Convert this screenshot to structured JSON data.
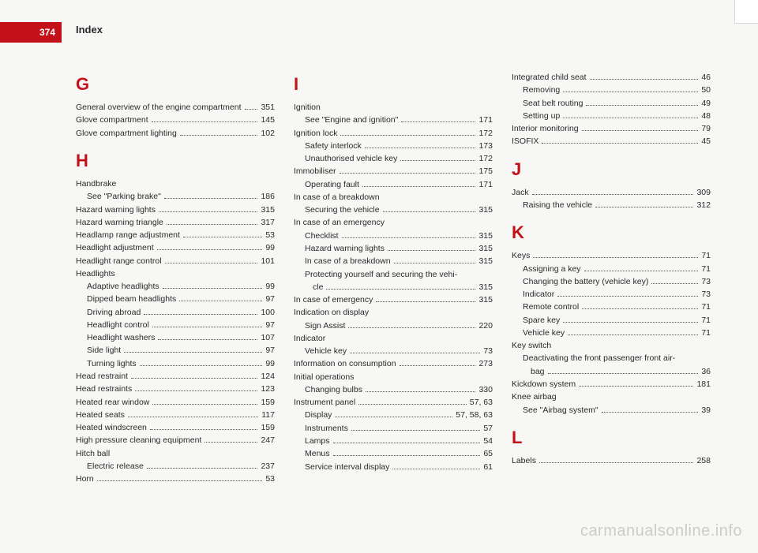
{
  "colors": {
    "page_bg": "#f7f7f5",
    "red_tab": "#c41018",
    "heading_red": "#c41018",
    "text": "#2a2a2a",
    "header_text": "#2a2a2a",
    "watermark": "rgba(0,0,0,0.18)"
  },
  "page_number": "374",
  "header_title": "Index",
  "watermark": "carmanualsonline.info",
  "columns": [
    {
      "sections": [
        {
          "letter": "G",
          "entries": [
            {
              "label": "General overview of the engine compartment",
              "page": "351"
            },
            {
              "label": "Glove compartment",
              "page": "145"
            },
            {
              "label": "Glove compartment lighting",
              "page": "102"
            }
          ]
        },
        {
          "letter": "H",
          "entries": [
            {
              "label": "Handbrake",
              "page": ""
            },
            {
              "label": "See \"Parking brake\"",
              "page": "186",
              "sub": true
            },
            {
              "label": "Hazard warning lights",
              "page": "315"
            },
            {
              "label": "Hazard warning triangle",
              "page": "317"
            },
            {
              "label": "Headlamp range adjustment",
              "page": "53"
            },
            {
              "label": "Headlight adjustment",
              "page": "99"
            },
            {
              "label": "Headlight range control",
              "page": "101"
            },
            {
              "label": "Headlights",
              "page": ""
            },
            {
              "label": "Adaptive headlights",
              "page": "99",
              "sub": true
            },
            {
              "label": "Dipped beam headlights",
              "page": "97",
              "sub": true
            },
            {
              "label": "Driving abroad",
              "page": "100",
              "sub": true
            },
            {
              "label": "Headlight control",
              "page": "97",
              "sub": true
            },
            {
              "label": "Headlight washers",
              "page": "107",
              "sub": true
            },
            {
              "label": "Side light",
              "page": "97",
              "sub": true
            },
            {
              "label": "Turning lights",
              "page": "99",
              "sub": true
            },
            {
              "label": "Head restraint",
              "page": "124"
            },
            {
              "label": "Head restraints",
              "page": "123"
            },
            {
              "label": "Heated rear window",
              "page": "159"
            },
            {
              "label": "Heated seats",
              "page": "117"
            },
            {
              "label": "Heated windscreen",
              "page": "159"
            },
            {
              "label": "High pressure cleaning equipment",
              "page": "247"
            },
            {
              "label": "Hitch ball",
              "page": ""
            },
            {
              "label": "Electric release",
              "page": "237",
              "sub": true
            },
            {
              "label": "Horn",
              "page": "53"
            }
          ]
        }
      ]
    },
    {
      "sections": [
        {
          "letter": "I",
          "entries": [
            {
              "label": "Ignition",
              "page": ""
            },
            {
              "label": "See \"Engine and ignition\"",
              "page": "171",
              "sub": true
            },
            {
              "label": "Ignition lock",
              "page": "172"
            },
            {
              "label": "Safety interlock",
              "page": "173",
              "sub": true
            },
            {
              "label": "Unauthorised vehicle key",
              "page": "172",
              "sub": true
            },
            {
              "label": "Immobiliser",
              "page": "175"
            },
            {
              "label": "Operating fault",
              "page": "171",
              "sub": true
            },
            {
              "label": "In case of a breakdown",
              "page": ""
            },
            {
              "label": "Securing the vehicle",
              "page": "315",
              "sub": true
            },
            {
              "label": "In case of an emergency",
              "page": ""
            },
            {
              "label": "Checklist",
              "page": "315",
              "sub": true
            },
            {
              "label": "Hazard warning lights",
              "page": "315",
              "sub": true
            },
            {
              "label": "In case of a breakdown",
              "page": "315",
              "sub": true
            },
            {
              "label": "Protecting yourself and securing the vehi-",
              "page": "",
              "sub": true,
              "nopagedots": true
            },
            {
              "label": "cle",
              "page": "315",
              "sub": true,
              "subsub": true
            },
            {
              "label": "In case of emergency",
              "page": "315"
            },
            {
              "label": "Indication on display",
              "page": ""
            },
            {
              "label": "Sign Assist",
              "page": "220",
              "sub": true
            },
            {
              "label": "Indicator",
              "page": ""
            },
            {
              "label": "Vehicle key",
              "page": "73",
              "sub": true
            },
            {
              "label": "Information on consumption",
              "page": "273"
            },
            {
              "label": "Initial operations",
              "page": ""
            },
            {
              "label": "Changing bulbs",
              "page": "330",
              "sub": true
            },
            {
              "label": "Instrument panel",
              "page": "57, 63"
            },
            {
              "label": "Display",
              "page": "57, 58, 63",
              "sub": true
            },
            {
              "label": "Instruments",
              "page": "57",
              "sub": true
            },
            {
              "label": "Lamps",
              "page": "54",
              "sub": true
            },
            {
              "label": "Menus",
              "page": "65",
              "sub": true
            },
            {
              "label": "Service interval display",
              "page": "61",
              "sub": true
            }
          ]
        }
      ]
    },
    {
      "sections": [
        {
          "letter": "",
          "entries": [
            {
              "label": "Integrated child seat",
              "page": "46"
            },
            {
              "label": "Removing",
              "page": "50",
              "sub": true
            },
            {
              "label": "Seat belt routing",
              "page": "49",
              "sub": true
            },
            {
              "label": "Setting up",
              "page": "48",
              "sub": true
            },
            {
              "label": "Interior monitoring",
              "page": "79"
            },
            {
              "label": "ISOFIX",
              "page": "45"
            }
          ]
        },
        {
          "letter": "J",
          "entries": [
            {
              "label": "Jack",
              "page": "309"
            },
            {
              "label": "Raising the vehicle",
              "page": "312",
              "sub": true
            }
          ]
        },
        {
          "letter": "K",
          "entries": [
            {
              "label": "Keys",
              "page": "71"
            },
            {
              "label": "Assigning a key",
              "page": "71",
              "sub": true
            },
            {
              "label": "Changing the battery (vehicle key)",
              "page": "73",
              "sub": true
            },
            {
              "label": "Indicator",
              "page": "73",
              "sub": true
            },
            {
              "label": "Remote control",
              "page": "71",
              "sub": true
            },
            {
              "label": "Spare key",
              "page": "71",
              "sub": true
            },
            {
              "label": "Vehicle key",
              "page": "71",
              "sub": true
            },
            {
              "label": "Key switch",
              "page": ""
            },
            {
              "label": "Deactivating the front passenger front air-",
              "page": "",
              "sub": true,
              "nopagedots": true
            },
            {
              "label": "bag",
              "page": "36",
              "sub": true,
              "subsub": true
            },
            {
              "label": "Kickdown system",
              "page": "181"
            },
            {
              "label": "Knee airbag",
              "page": ""
            },
            {
              "label": "See \"Airbag system\"",
              "page": "39",
              "sub": true
            }
          ]
        },
        {
          "letter": "L",
          "entries": [
            {
              "label": "Labels",
              "page": "258"
            }
          ]
        }
      ]
    }
  ]
}
